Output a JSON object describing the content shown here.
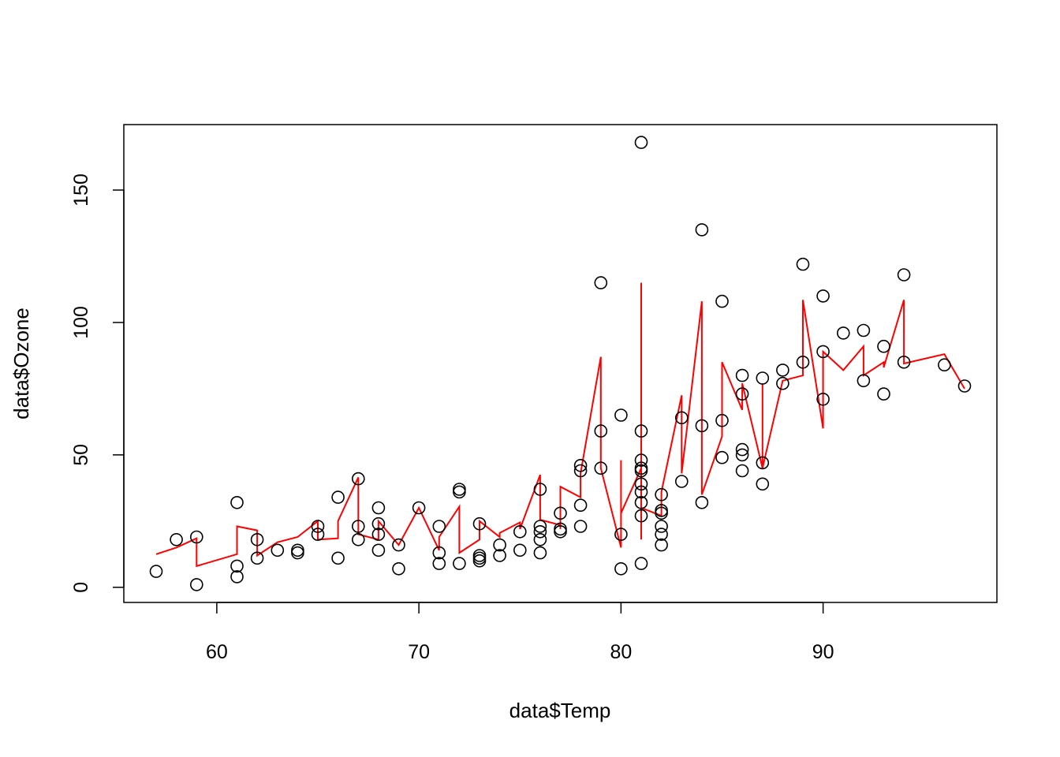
{
  "chart_data": {
    "type": "scatter",
    "title": "",
    "xlabel": "data$Temp",
    "ylabel": "data$Ozone",
    "xlim": [
      55.4,
      98.6
    ],
    "ylim": [
      -5.72,
      174.72
    ],
    "x_ticks": [
      60,
      70,
      80,
      90
    ],
    "x_tick_labels": [
      "60",
      "70",
      "80",
      "90"
    ],
    "y_ticks": [
      0,
      50,
      100,
      150
    ],
    "y_tick_labels": [
      "0",
      "50",
      "100",
      "150"
    ],
    "grid": false,
    "legend": "none",
    "point_color": "#000000",
    "line_color": "#ff0000",
    "series": [
      {
        "type": "scatter",
        "points": [
          [
            57,
            6
          ],
          [
            58,
            18
          ],
          [
            59,
            1
          ],
          [
            59,
            19
          ],
          [
            61,
            4
          ],
          [
            61,
            8
          ],
          [
            61,
            32
          ],
          [
            62,
            11
          ],
          [
            62,
            18
          ],
          [
            63,
            14
          ],
          [
            64,
            13
          ],
          [
            64,
            14
          ],
          [
            65,
            20
          ],
          [
            65,
            23
          ],
          [
            66,
            11
          ],
          [
            66,
            34
          ],
          [
            67,
            18
          ],
          [
            67,
            23
          ],
          [
            67,
            41
          ],
          [
            68,
            14
          ],
          [
            68,
            20
          ],
          [
            68,
            24
          ],
          [
            68,
            30
          ],
          [
            69,
            7
          ],
          [
            69,
            16
          ],
          [
            70,
            30
          ],
          [
            71,
            9
          ],
          [
            71,
            13
          ],
          [
            71,
            23
          ],
          [
            72,
            9
          ],
          [
            72,
            36
          ],
          [
            72,
            37
          ],
          [
            73,
            10
          ],
          [
            73,
            11
          ],
          [
            73,
            12
          ],
          [
            73,
            24
          ],
          [
            74,
            12
          ],
          [
            74,
            16
          ],
          [
            75,
            14
          ],
          [
            75,
            21
          ],
          [
            76,
            13
          ],
          [
            76,
            18
          ],
          [
            76,
            21
          ],
          [
            76,
            23
          ],
          [
            76,
            37
          ],
          [
            77,
            21
          ],
          [
            77,
            22
          ],
          [
            77,
            28
          ],
          [
            78,
            23
          ],
          [
            78,
            31
          ],
          [
            78,
            44
          ],
          [
            78,
            46
          ],
          [
            79,
            45
          ],
          [
            79,
            59
          ],
          [
            79,
            115
          ],
          [
            80,
            7
          ],
          [
            80,
            20
          ],
          [
            80,
            65
          ],
          [
            81,
            9
          ],
          [
            81,
            27
          ],
          [
            81,
            32
          ],
          [
            81,
            36
          ],
          [
            81,
            39
          ],
          [
            81,
            44
          ],
          [
            81,
            45
          ],
          [
            81,
            48
          ],
          [
            81,
            59
          ],
          [
            81,
            168
          ],
          [
            82,
            16
          ],
          [
            82,
            20
          ],
          [
            82,
            23
          ],
          [
            82,
            28
          ],
          [
            82,
            29
          ],
          [
            82,
            35
          ],
          [
            83,
            40
          ],
          [
            83,
            64
          ],
          [
            84,
            32
          ],
          [
            84,
            61
          ],
          [
            84,
            135
          ],
          [
            85,
            49
          ],
          [
            85,
            63
          ],
          [
            85,
            108
          ],
          [
            86,
            44
          ],
          [
            86,
            50
          ],
          [
            86,
            52
          ],
          [
            86,
            73
          ],
          [
            86,
            80
          ],
          [
            87,
            39
          ],
          [
            87,
            47
          ],
          [
            87,
            79
          ],
          [
            88,
            77
          ],
          [
            88,
            82
          ],
          [
            89,
            85
          ],
          [
            89,
            122
          ],
          [
            90,
            71
          ],
          [
            90,
            89
          ],
          [
            90,
            110
          ],
          [
            91,
            96
          ],
          [
            92,
            78
          ],
          [
            92,
            97
          ],
          [
            93,
            73
          ],
          [
            93,
            91
          ],
          [
            94,
            85
          ],
          [
            94,
            118
          ],
          [
            96,
            84
          ],
          [
            97,
            76
          ]
        ]
      },
      {
        "type": "line",
        "points": [
          [
            57,
            12.5
          ],
          [
            58,
            15
          ],
          [
            59,
            18.5
          ],
          [
            59,
            8
          ],
          [
            61,
            12.5
          ],
          [
            61,
            23
          ],
          [
            62,
            21.5
          ],
          [
            62,
            12
          ],
          [
            63,
            17
          ],
          [
            64,
            19
          ],
          [
            65,
            25
          ],
          [
            65,
            18
          ],
          [
            66,
            18.5
          ],
          [
            66,
            25
          ],
          [
            67,
            41.5
          ],
          [
            67,
            20
          ],
          [
            68,
            18
          ],
          [
            68,
            25
          ],
          [
            69,
            16
          ],
          [
            70,
            30
          ],
          [
            71,
            14
          ],
          [
            71,
            19
          ],
          [
            72,
            30.5
          ],
          [
            72,
            13
          ],
          [
            73,
            18
          ],
          [
            73,
            25
          ],
          [
            74,
            19
          ],
          [
            74,
            20.5
          ],
          [
            75,
            24.5
          ],
          [
            75,
            22
          ],
          [
            76,
            42.5
          ],
          [
            76,
            25.5
          ],
          [
            77,
            23.5
          ],
          [
            77,
            22
          ],
          [
            77,
            38
          ],
          [
            78,
            34
          ],
          [
            78,
            43
          ],
          [
            79,
            87
          ],
          [
            79,
            45
          ],
          [
            80,
            15
          ],
          [
            80,
            48
          ],
          [
            80,
            28
          ],
          [
            81,
            45
          ],
          [
            81,
            115
          ],
          [
            81,
            18
          ],
          [
            81,
            30
          ],
          [
            82,
            27
          ],
          [
            82,
            36
          ],
          [
            83,
            72.5
          ],
          [
            83,
            43
          ],
          [
            84,
            108
          ],
          [
            84,
            35
          ],
          [
            85,
            57
          ],
          [
            85,
            85
          ],
          [
            86,
            67
          ],
          [
            86,
            77
          ],
          [
            87,
            45
          ],
          [
            87,
            77
          ],
          [
            87,
            45
          ],
          [
            88,
            78
          ],
          [
            88,
            78
          ],
          [
            89,
            80
          ],
          [
            89,
            108.5
          ],
          [
            90,
            60
          ],
          [
            90,
            89
          ],
          [
            91,
            82
          ],
          [
            92,
            91
          ],
          [
            92,
            80
          ],
          [
            93,
            85
          ],
          [
            93,
            83
          ],
          [
            94,
            108.5
          ],
          [
            94,
            84.5
          ],
          [
            96,
            88
          ],
          [
            97,
            75
          ]
        ]
      }
    ]
  }
}
